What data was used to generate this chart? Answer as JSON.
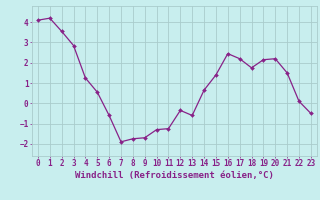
{
  "x": [
    0,
    1,
    2,
    3,
    4,
    5,
    6,
    7,
    8,
    9,
    10,
    11,
    12,
    13,
    14,
    15,
    16,
    17,
    18,
    19,
    20,
    21,
    22,
    23
  ],
  "y": [
    4.1,
    4.2,
    3.55,
    2.85,
    1.25,
    0.55,
    -0.6,
    -1.9,
    -1.75,
    -1.7,
    -1.3,
    -1.25,
    -0.35,
    -0.6,
    0.65,
    1.4,
    2.45,
    2.2,
    1.75,
    2.15,
    2.2,
    1.5,
    0.1,
    -0.5
  ],
  "line_color": "#882288",
  "marker": "D",
  "marker_size": 2.0,
  "linewidth": 0.9,
  "bg_color": "#c8eeee",
  "grid_color": "#aacccc",
  "tick_color": "#882288",
  "xlabel": "Windchill (Refroidissement éolien,°C)",
  "xlabel_fontsize": 6.5,
  "tick_fontsize": 5.5,
  "xlim": [
    -0.5,
    23.5
  ],
  "ylim": [
    -2.6,
    4.8
  ],
  "yticks": [
    -2,
    -1,
    0,
    1,
    2,
    3,
    4
  ],
  "xticks": [
    0,
    1,
    2,
    3,
    4,
    5,
    6,
    7,
    8,
    9,
    10,
    11,
    12,
    13,
    14,
    15,
    16,
    17,
    18,
    19,
    20,
    21,
    22,
    23
  ]
}
